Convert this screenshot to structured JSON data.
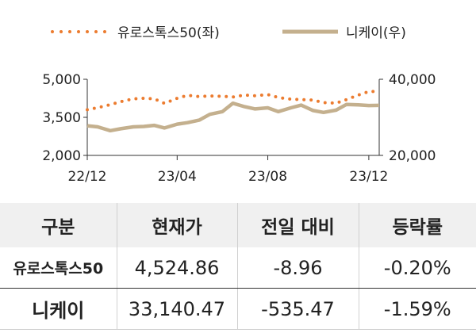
{
  "chart_data": {
    "type": "line",
    "x_ticks": [
      "22/12",
      "23/04",
      "23/08",
      "23/12"
    ],
    "y_left_ticks": [
      "5,000",
      "3,500",
      "2,000"
    ],
    "y_left_range": [
      2000,
      5000
    ],
    "y_right_ticks": [
      "40,000",
      "20,000"
    ],
    "y_right_range": [
      20000,
      40000
    ],
    "legend_placement": "top",
    "grid": false,
    "series": [
      {
        "name": "유로스톡스50(좌)",
        "axis": "left",
        "style": "dotted",
        "color": "#ec7c30",
        "x": [
          "2022-12-01",
          "2022-12-15",
          "2023-01-01",
          "2023-01-15",
          "2023-02-01",
          "2023-02-15",
          "2023-03-01",
          "2023-03-15",
          "2023-04-01",
          "2023-04-15",
          "2023-05-01",
          "2023-05-15",
          "2023-06-01",
          "2023-06-15",
          "2023-07-01",
          "2023-07-15",
          "2023-08-01",
          "2023-08-15",
          "2023-09-01",
          "2023-09-15",
          "2023-10-01",
          "2023-10-15",
          "2023-11-01",
          "2023-11-15",
          "2023-12-01",
          "2023-12-15",
          "2023-12-29"
        ],
        "values": [
          3800,
          3880,
          4000,
          4120,
          4230,
          4250,
          4230,
          4050,
          4250,
          4370,
          4320,
          4340,
          4330,
          4300,
          4380,
          4350,
          4400,
          4280,
          4220,
          4200,
          4180,
          4080,
          4060,
          4200,
          4380,
          4520,
          4525
        ]
      },
      {
        "name": "니케이(우)",
        "axis": "right",
        "style": "solid",
        "color": "#c4b08e",
        "x": [
          "2022-12-01",
          "2022-12-15",
          "2023-01-01",
          "2023-01-15",
          "2023-02-01",
          "2023-02-15",
          "2023-03-01",
          "2023-03-15",
          "2023-04-01",
          "2023-04-15",
          "2023-05-01",
          "2023-05-15",
          "2023-06-01",
          "2023-06-15",
          "2023-07-01",
          "2023-07-15",
          "2023-08-01",
          "2023-08-15",
          "2023-09-01",
          "2023-09-15",
          "2023-10-01",
          "2023-10-15",
          "2023-11-01",
          "2023-11-15",
          "2023-12-01",
          "2023-12-15",
          "2023-12-29"
        ],
        "values": [
          27800,
          27500,
          26500,
          27000,
          27500,
          27600,
          27900,
          27200,
          28200,
          28600,
          29300,
          30800,
          31500,
          33700,
          32800,
          32200,
          32500,
          31500,
          32500,
          33200,
          31800,
          31300,
          31900,
          33400,
          33300,
          33100,
          33140
        ]
      }
    ]
  },
  "table": {
    "headers": [
      "구분",
      "현재가",
      "전일 대비",
      "등락률"
    ],
    "rows": [
      [
        "유로스톡스50",
        "4,524.86",
        "-8.96",
        "-0.20%"
      ],
      [
        "니케이",
        "33,140.47",
        "-535.47",
        "-1.59%"
      ]
    ]
  }
}
